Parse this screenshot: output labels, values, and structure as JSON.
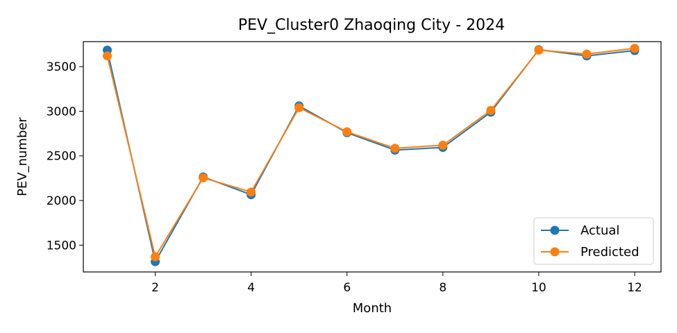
{
  "chart_data": {
    "type": "line",
    "title": "PEV_Cluster0 Zhaoqing City - 2024",
    "xlabel": "Month",
    "ylabel": "PEV_number",
    "x": [
      1,
      2,
      3,
      4,
      5,
      6,
      7,
      8,
      9,
      10,
      11,
      12
    ],
    "xlim": [
      0.5,
      12.55
    ],
    "ylim": [
      1200,
      3780
    ],
    "xticks": [
      2,
      4,
      6,
      8,
      10,
      12
    ],
    "yticks": [
      1500,
      2000,
      2500,
      3000,
      3500
    ],
    "grid": false,
    "legend_position": "lower right",
    "series": [
      {
        "name": "Actual",
        "color": "#1f77b4",
        "values": [
          3685,
          1315,
          2265,
          2065,
          3060,
          2760,
          2565,
          2595,
          2990,
          3690,
          3620,
          3680
        ]
      },
      {
        "name": "Predicted",
        "color": "#ff7f0e",
        "values": [
          3620,
          1370,
          2255,
          2095,
          3040,
          2770,
          2585,
          2620,
          3010,
          3685,
          3640,
          3705
        ]
      }
    ]
  }
}
